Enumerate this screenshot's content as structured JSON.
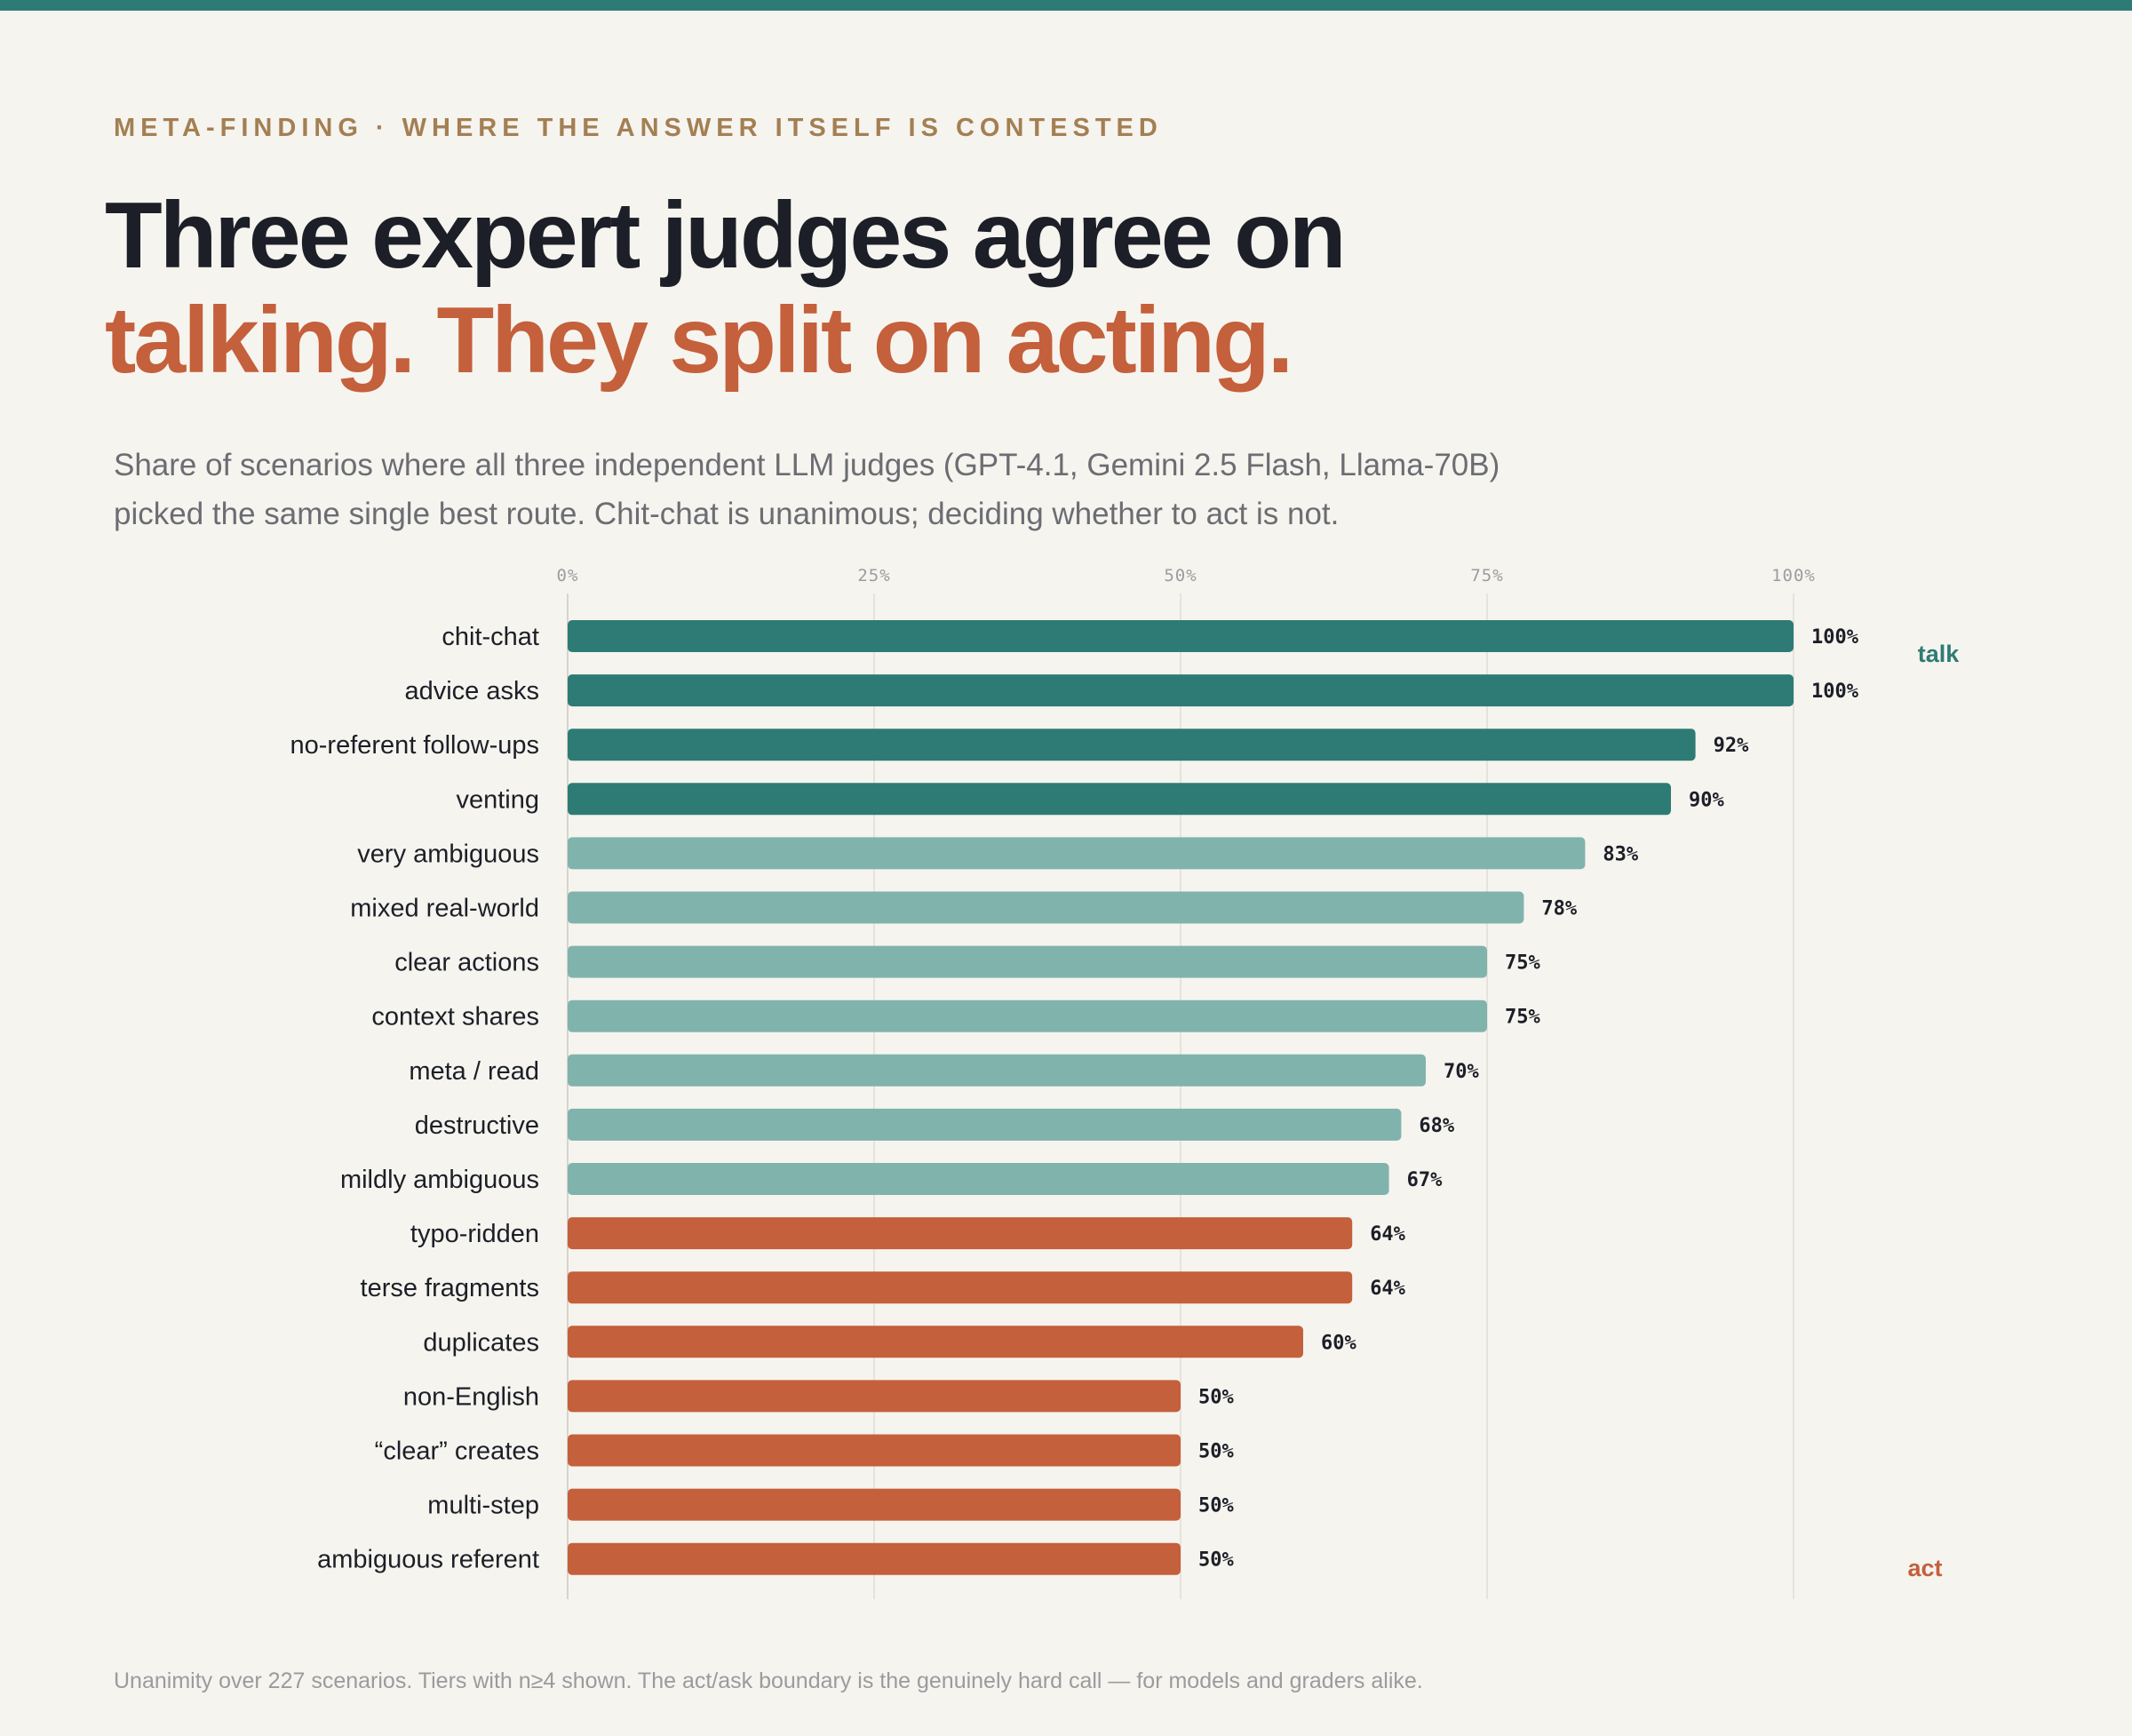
{
  "eyebrow": "META-FINDING · WHERE THE ANSWER ITSELF IS CONTESTED",
  "headline": {
    "line1": "Three expert judges agree on",
    "line2": "talking. They split on acting."
  },
  "subtitle": {
    "line1": "Share of scenarios where all three independent LLM judges (GPT-4.1, Gemini 2.5 Flash, Llama-70B)",
    "line2": "picked the same single best route. Chit-chat is unanimous; deciding whether to act is not."
  },
  "footnote": "Unanimity over 227 scenarios. Tiers with n≥4 shown. The act/ask boundary is the genuinely hard call — for models and graders alike.",
  "colors": {
    "talk_strong": "#2e7b75",
    "talk_light": "#81b3ad",
    "act": "#c4603b",
    "grid": "#e6e3dc"
  },
  "chart_data": {
    "type": "bar",
    "orientation": "horizontal",
    "x_ticks": [
      "0%",
      "25%",
      "50%",
      "75%",
      "100%"
    ],
    "xlim": [
      0,
      100
    ],
    "grid": true,
    "side_labels": {
      "top": "talk",
      "bottom": "act"
    },
    "bars": [
      {
        "category": "chit-chat",
        "value": 100,
        "label": "100%",
        "group": "talk_strong"
      },
      {
        "category": "advice asks",
        "value": 100,
        "label": "100%",
        "group": "talk_strong"
      },
      {
        "category": "no-referent follow-ups",
        "value": 92,
        "label": "92%",
        "group": "talk_strong"
      },
      {
        "category": "venting",
        "value": 90,
        "label": "90%",
        "group": "talk_strong"
      },
      {
        "category": "very ambiguous",
        "value": 83,
        "label": "83%",
        "group": "talk_light"
      },
      {
        "category": "mixed real-world",
        "value": 78,
        "label": "78%",
        "group": "talk_light"
      },
      {
        "category": "clear actions",
        "value": 75,
        "label": "75%",
        "group": "talk_light"
      },
      {
        "category": "context shares",
        "value": 75,
        "label": "75%",
        "group": "talk_light"
      },
      {
        "category": "meta / read",
        "value": 70,
        "label": "70%",
        "group": "talk_light"
      },
      {
        "category": "destructive",
        "value": 68,
        "label": "68%",
        "group": "talk_light"
      },
      {
        "category": "mildly ambiguous",
        "value": 67,
        "label": "67%",
        "group": "talk_light"
      },
      {
        "category": "typo-ridden",
        "value": 64,
        "label": "64%",
        "group": "act"
      },
      {
        "category": "terse fragments",
        "value": 64,
        "label": "64%",
        "group": "act"
      },
      {
        "category": "duplicates",
        "value": 60,
        "label": "60%",
        "group": "act"
      },
      {
        "category": "non-English",
        "value": 50,
        "label": "50%",
        "group": "act"
      },
      {
        "category": "“clear” creates",
        "value": 50,
        "label": "50%",
        "group": "act"
      },
      {
        "category": "multi-step",
        "value": 50,
        "label": "50%",
        "group": "act"
      },
      {
        "category": "ambiguous referent",
        "value": 50,
        "label": "50%",
        "group": "act"
      }
    ]
  }
}
